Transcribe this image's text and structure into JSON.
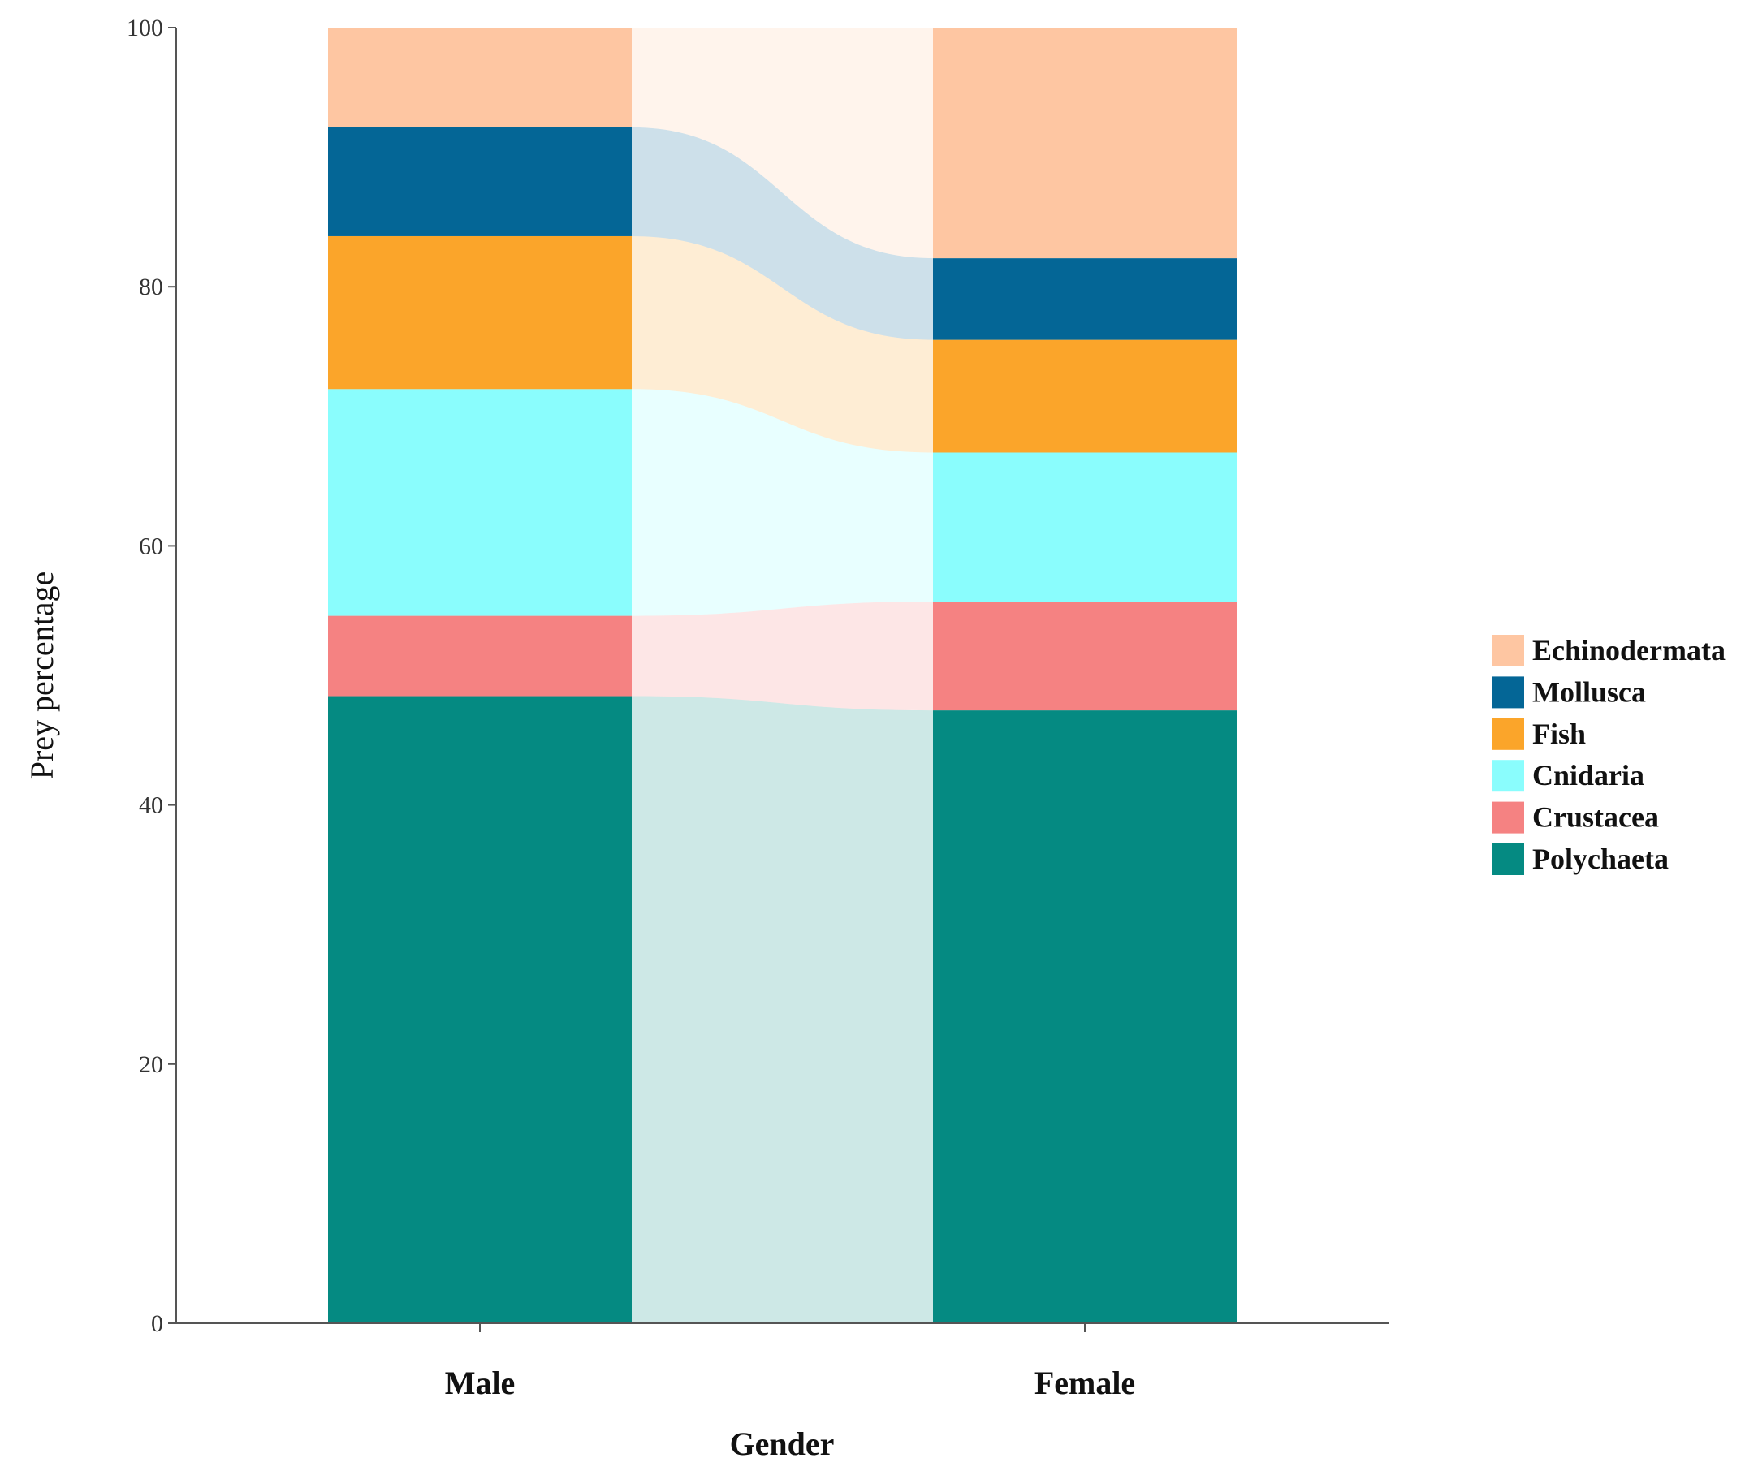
{
  "chart_data": {
    "type": "stacked-bar-alluvial",
    "title": "",
    "xlabel": "Gender",
    "ylabel": "Prey percentage",
    "ylim": [
      0,
      100
    ],
    "yticks": [
      "0",
      "20",
      "40",
      "60",
      "80",
      "100"
    ],
    "categories": [
      "Male",
      "Female"
    ],
    "legend_position": "right",
    "series": [
      {
        "name": "Polychaeta",
        "color": "#058a82",
        "values": [
          48.4,
          47.3
        ]
      },
      {
        "name": "Crustacea",
        "color": "#f58282",
        "values": [
          6.2,
          8.4
        ]
      },
      {
        "name": "Cnidaria",
        "color": "#8afdfd",
        "values": [
          17.5,
          11.5
        ]
      },
      {
        "name": "Fish",
        "color": "#fba52a",
        "values": [
          11.8,
          8.7
        ]
      },
      {
        "name": "Mollusca",
        "color": "#046696",
        "values": [
          8.4,
          6.3
        ]
      },
      {
        "name": "Echinodermata",
        "color": "#fec6a2",
        "values": [
          7.7,
          17.8
        ]
      }
    ],
    "legend_order": [
      "Echinodermata",
      "Mollusca",
      "Fish",
      "Cnidaria",
      "Crustacea",
      "Polychaeta"
    ]
  }
}
